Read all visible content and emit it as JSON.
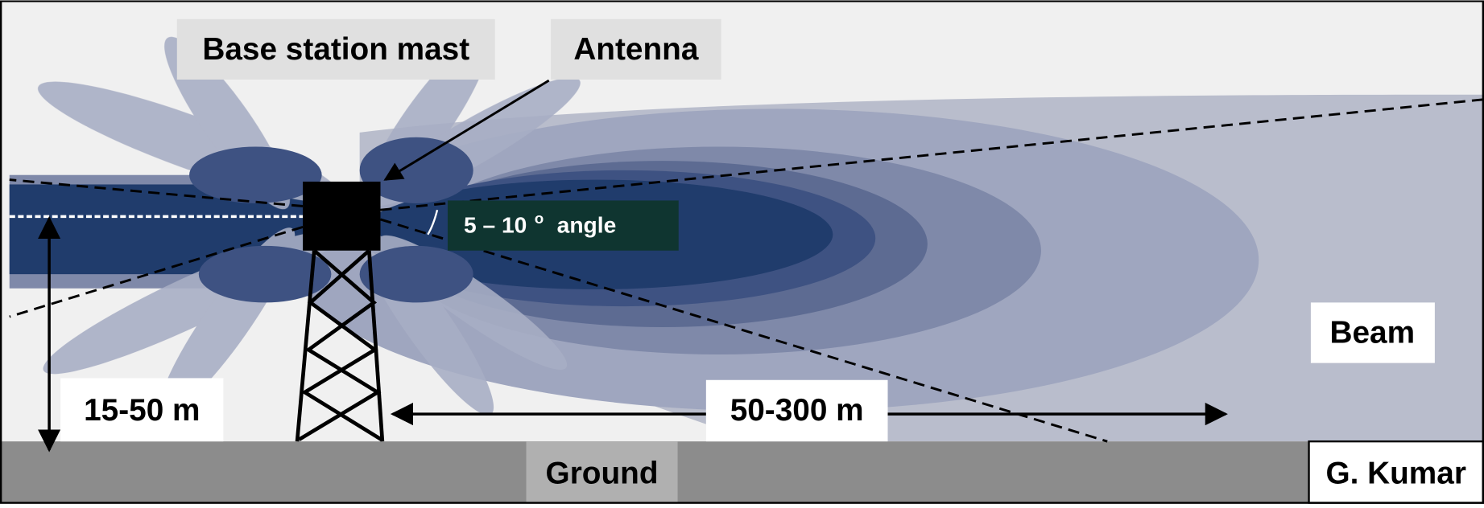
{
  "labels": {
    "mast": "Base station mast",
    "antenna": "Antenna",
    "angle": {
      "text": "5 – 10",
      "superscript": "o",
      "suffix": "angle"
    },
    "height": "15-50 m",
    "distance": "50-300 m",
    "beam": "Beam",
    "ground": "Ground",
    "credit": "G. Kumar"
  }
}
